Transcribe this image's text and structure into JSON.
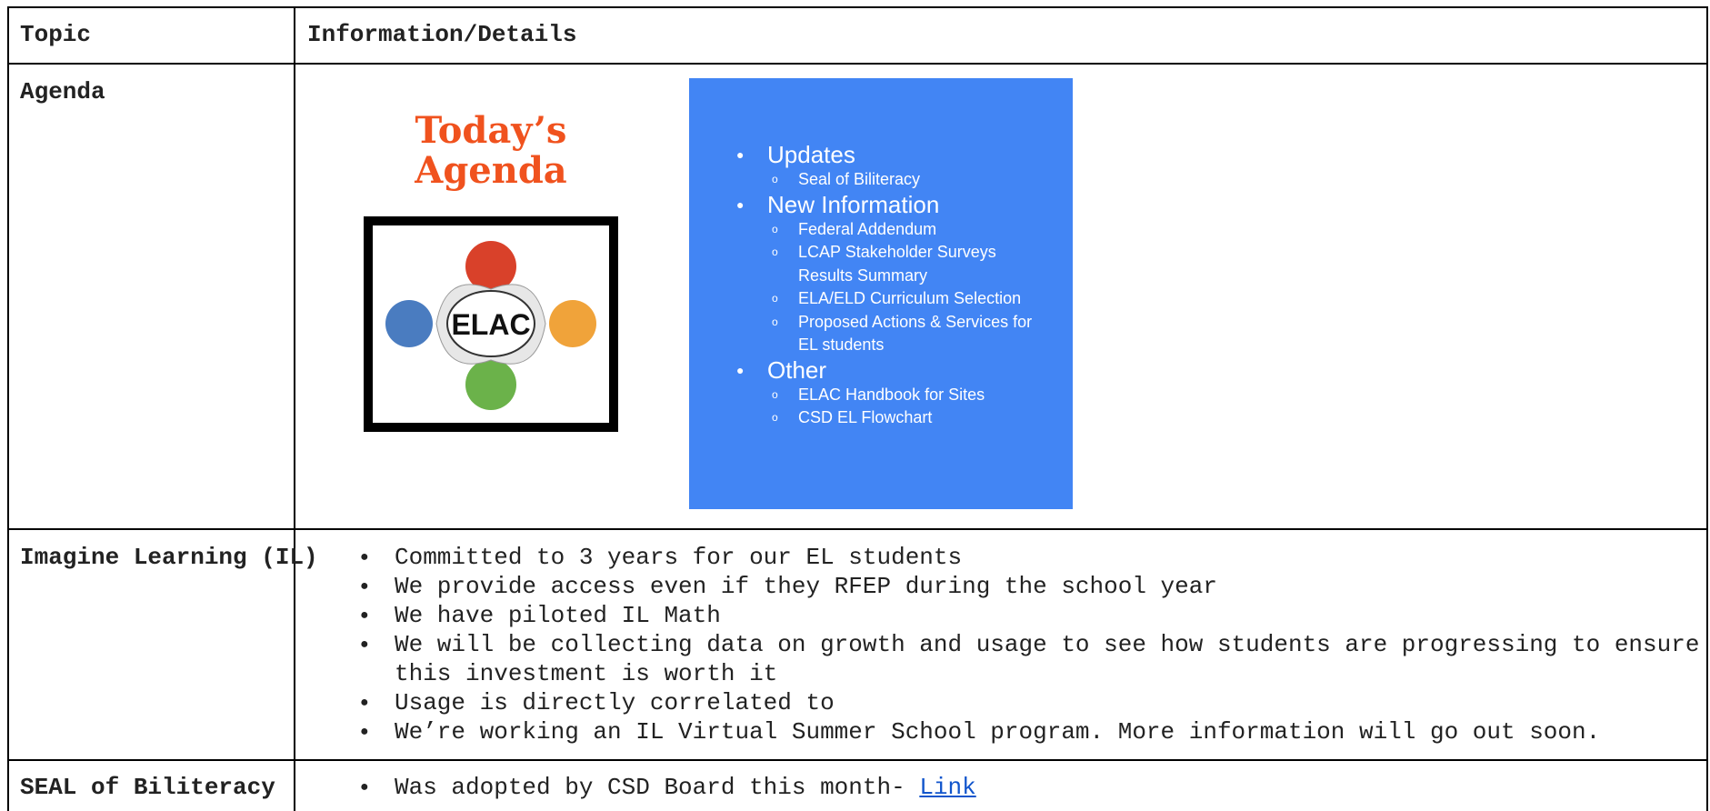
{
  "table": {
    "header": [
      "Topic",
      "Information/Details"
    ],
    "rows": [
      {
        "topic": "Agenda",
        "image_title": "Today’s Agenda",
        "logo": "ELAC",
        "agenda": [
          {
            "item": "Updates",
            "subitems": [
              "Seal of Biliteracy"
            ]
          },
          {
            "item": "New Information",
            "subitems": [
              "Federal Addendum",
              "LCAP Stakeholder Surveys Results Summary",
              "ELA/ELD Curriculum Selection",
              "Proposed Actions & Services for EL students"
            ]
          },
          {
            "item": "Other",
            "subitems": [
              "ELAC Handbook for Sites",
              "CSD EL Flowchart"
            ]
          }
        ]
      },
      {
        "topic": "Imagine Learning (IL)",
        "bullets": [
          "Committed to 3 years for our EL students",
          "We provide access even if they RFEP during the school year",
          "We have piloted IL Math",
          "We will be collecting data on growth and usage to see how students are progressing to ensure this investment is worth it",
          "Usage is directly correlated to",
          "We’re working an IL Virtual Summer School program.  More information will go out soon."
        ]
      },
      {
        "topic": "SEAL of Biliteracy",
        "bullets": [
          "Was adopted by CSD Board this month-"
        ],
        "link": "Link"
      }
    ]
  }
}
